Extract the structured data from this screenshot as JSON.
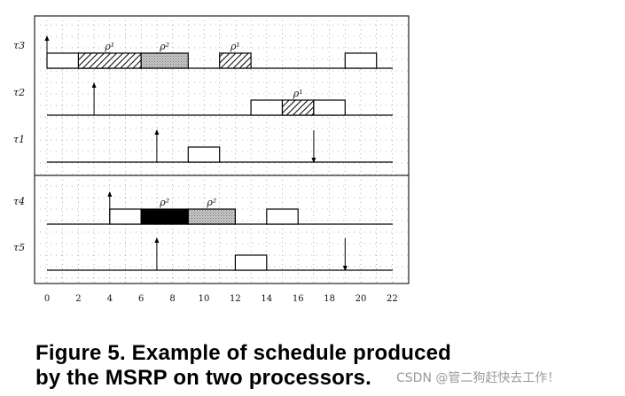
{
  "figure": {
    "x_ticks": [
      0,
      2,
      4,
      6,
      8,
      10,
      12,
      14,
      16,
      18,
      20,
      22
    ],
    "resources": {
      "r1": "ρ¹",
      "r2": "ρ²"
    },
    "fills": {
      "plain": "#ffffff",
      "r1": "hatch",
      "r2": "dotted-gray",
      "r2_dark": "#000000"
    },
    "tasks": [
      {
        "label": "τ3",
        "arrivals": [
          0
        ],
        "deadlines": [],
        "blocks": [
          {
            "start": 0,
            "end": 4,
            "fill": "plain"
          },
          {
            "start": 2,
            "end": 6,
            "fill": "r1",
            "res_label": "ρ¹"
          },
          {
            "start": 6,
            "end": 9,
            "fill": "r2",
            "res_label": "ρ²"
          },
          {
            "start": 11,
            "end": 13,
            "fill": "r1",
            "res_label": "ρ¹"
          },
          {
            "start": 19,
            "end": 21,
            "fill": "plain"
          }
        ]
      },
      {
        "label": "τ2",
        "arrivals": [
          3
        ],
        "deadlines": [],
        "blocks": [
          {
            "start": 13,
            "end": 15,
            "fill": "plain"
          },
          {
            "start": 15,
            "end": 17,
            "fill": "r1",
            "res_label": "ρ¹"
          },
          {
            "start": 17,
            "end": 19,
            "fill": "plain"
          }
        ]
      },
      {
        "label": "τ1",
        "arrivals": [
          7
        ],
        "deadlines": [
          17
        ],
        "blocks": [
          {
            "start": 9,
            "end": 11,
            "fill": "plain"
          }
        ]
      },
      {
        "label": "τ4",
        "arrivals": [
          4
        ],
        "deadlines": [],
        "blocks": [
          {
            "start": 4,
            "end": 6,
            "fill": "plain"
          },
          {
            "start": 6,
            "end": 9,
            "fill": "r2_dark",
            "res_label": "ρ²"
          },
          {
            "start": 9,
            "end": 12,
            "fill": "r2",
            "res_label": "ρ²"
          },
          {
            "start": 14,
            "end": 16,
            "fill": "plain"
          }
        ]
      },
      {
        "label": "τ5",
        "arrivals": [
          7
        ],
        "deadlines": [
          19
        ],
        "blocks": [
          {
            "start": 12,
            "end": 14,
            "fill": "plain"
          }
        ]
      }
    ]
  },
  "caption": {
    "line1": "Figure 5. Example of schedule produced",
    "line2": "by the MSRP on two processors."
  },
  "watermark": "CSDN @管二狗赶快去工作！"
}
